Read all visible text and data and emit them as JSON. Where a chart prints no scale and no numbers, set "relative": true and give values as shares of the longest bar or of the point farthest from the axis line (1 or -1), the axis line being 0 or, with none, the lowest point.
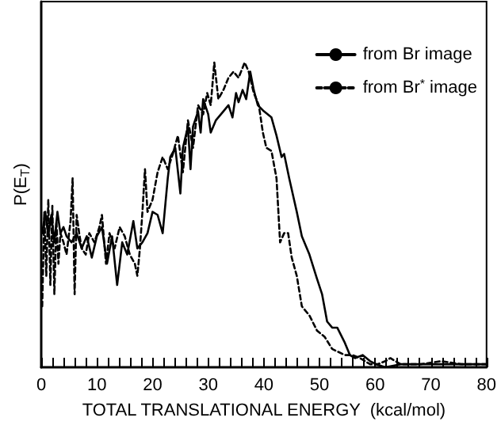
{
  "chart_data": {
    "type": "line",
    "xlabel": "TOTAL TRANSLATIONAL ENERGY  (kcal/mol)",
    "ylabel": "P(E$_{T}$)",
    "relative": true,
    "xlim": [
      0,
      80
    ],
    "xticks": [
      0,
      10,
      20,
      30,
      40,
      50,
      60,
      70,
      80
    ],
    "tick_labels": "x",
    "grid": false,
    "legend": "top right",
    "marker": "none",
    "series": [
      {
        "name": "from Br image",
        "color": "#000000",
        "line_style": "solid",
        "x": [
          0.18,
          0.73,
          1.27,
          1.82,
          2.36,
          2.91,
          3.45,
          4.0,
          4.55,
          5.45,
          6.36,
          7.27,
          8.18,
          9.09,
          10.0,
          10.91,
          11.82,
          12.73,
          13.64,
          14.55,
          15.45,
          16.55,
          17.27,
          18.18,
          19.09,
          20.0,
          20.91,
          21.82,
          22.73,
          23.18,
          24.09,
          25.0,
          25.45,
          26.36,
          26.82,
          27.27,
          28.18,
          28.64,
          29.09,
          30.0,
          30.45,
          31.36,
          32.73,
          33.64,
          34.36,
          35.0,
          35.45,
          36.18,
          36.82,
          37.55,
          38.18,
          38.91,
          40.0,
          41.36,
          42.27,
          43.18,
          43.64,
          44.55,
          45.91,
          46.82,
          48.18,
          49.55,
          50.45,
          51.36,
          52.27,
          53.18,
          54.55,
          55.45,
          56.36,
          57.73,
          59.09,
          60.18,
          61.82,
          64.55,
          68.18,
          72.73,
          77.27,
          79.82
        ],
        "values": [
          0.44,
          0.51,
          0.43,
          0.5,
          0.41,
          0.51,
          0.44,
          0.46,
          0.43,
          0.41,
          0.44,
          0.39,
          0.43,
          0.36,
          0.43,
          0.46,
          0.34,
          0.43,
          0.27,
          0.41,
          0.37,
          0.48,
          0.39,
          0.41,
          0.44,
          0.51,
          0.5,
          0.44,
          0.62,
          0.69,
          0.72,
          0.57,
          0.72,
          0.79,
          0.65,
          0.79,
          0.84,
          0.77,
          0.88,
          0.83,
          0.77,
          0.81,
          0.84,
          0.86,
          0.82,
          0.9,
          0.87,
          0.91,
          0.88,
          0.97,
          0.91,
          0.86,
          0.84,
          0.82,
          0.76,
          0.69,
          0.7,
          0.62,
          0.51,
          0.43,
          0.37,
          0.29,
          0.24,
          0.15,
          0.13,
          0.13,
          0.08,
          0.04,
          0.03,
          0.04,
          0.02,
          0.01,
          0.0,
          0.01,
          0.01,
          0.01,
          0.01,
          0.01
        ]
      },
      {
        "name": "from Br$^{*}$ image",
        "color": "#000000",
        "line_style": "dashed",
        "x": [
          0.18,
          0.55,
          0.91,
          1.27,
          1.64,
          2.0,
          2.36,
          2.73,
          3.09,
          3.45,
          4.0,
          4.55,
          5.27,
          5.64,
          6.0,
          6.36,
          6.82,
          7.27,
          8.0,
          8.64,
          9.55,
          10.45,
          10.91,
          11.64,
          12.27,
          13.18,
          14.09,
          15.0,
          15.91,
          16.82,
          17.27,
          17.73,
          18.18,
          18.64,
          19.09,
          20.0,
          20.91,
          21.82,
          22.73,
          23.64,
          24.55,
          25.45,
          26.36,
          27.27,
          28.18,
          29.09,
          29.82,
          30.45,
          31.09,
          31.82,
          32.73,
          33.64,
          34.55,
          35.45,
          36.55,
          37.27,
          38.18,
          39.09,
          39.82,
          40.45,
          41.36,
          42.27,
          42.91,
          43.64,
          44.36,
          45.0,
          45.91,
          46.82,
          48.18,
          49.55,
          50.91,
          52.27,
          54.55,
          55.91,
          57.27,
          59.09,
          60.45,
          61.82,
          62.73,
          64.55,
          68.18,
          71.82,
          75.45,
          79.82
        ],
        "values": [
          0.2,
          0.51,
          0.3,
          0.55,
          0.27,
          0.53,
          0.24,
          0.48,
          0.34,
          0.44,
          0.41,
          0.37,
          0.48,
          0.62,
          0.24,
          0.5,
          0.44,
          0.39,
          0.37,
          0.44,
          0.41,
          0.46,
          0.5,
          0.34,
          0.44,
          0.39,
          0.46,
          0.43,
          0.37,
          0.34,
          0.3,
          0.39,
          0.51,
          0.65,
          0.51,
          0.55,
          0.64,
          0.69,
          0.65,
          0.7,
          0.76,
          0.64,
          0.81,
          0.72,
          0.86,
          0.83,
          0.9,
          0.86,
          1.0,
          0.88,
          0.91,
          0.95,
          0.97,
          0.95,
          1.0,
          0.97,
          0.9,
          0.86,
          0.77,
          0.72,
          0.71,
          0.62,
          0.41,
          0.44,
          0.44,
          0.36,
          0.3,
          0.2,
          0.17,
          0.12,
          0.1,
          0.06,
          0.04,
          0.04,
          0.03,
          0.01,
          0.01,
          0.02,
          0.03,
          0.01,
          0.01,
          0.02,
          0.01,
          0.01
        ]
      }
    ]
  }
}
